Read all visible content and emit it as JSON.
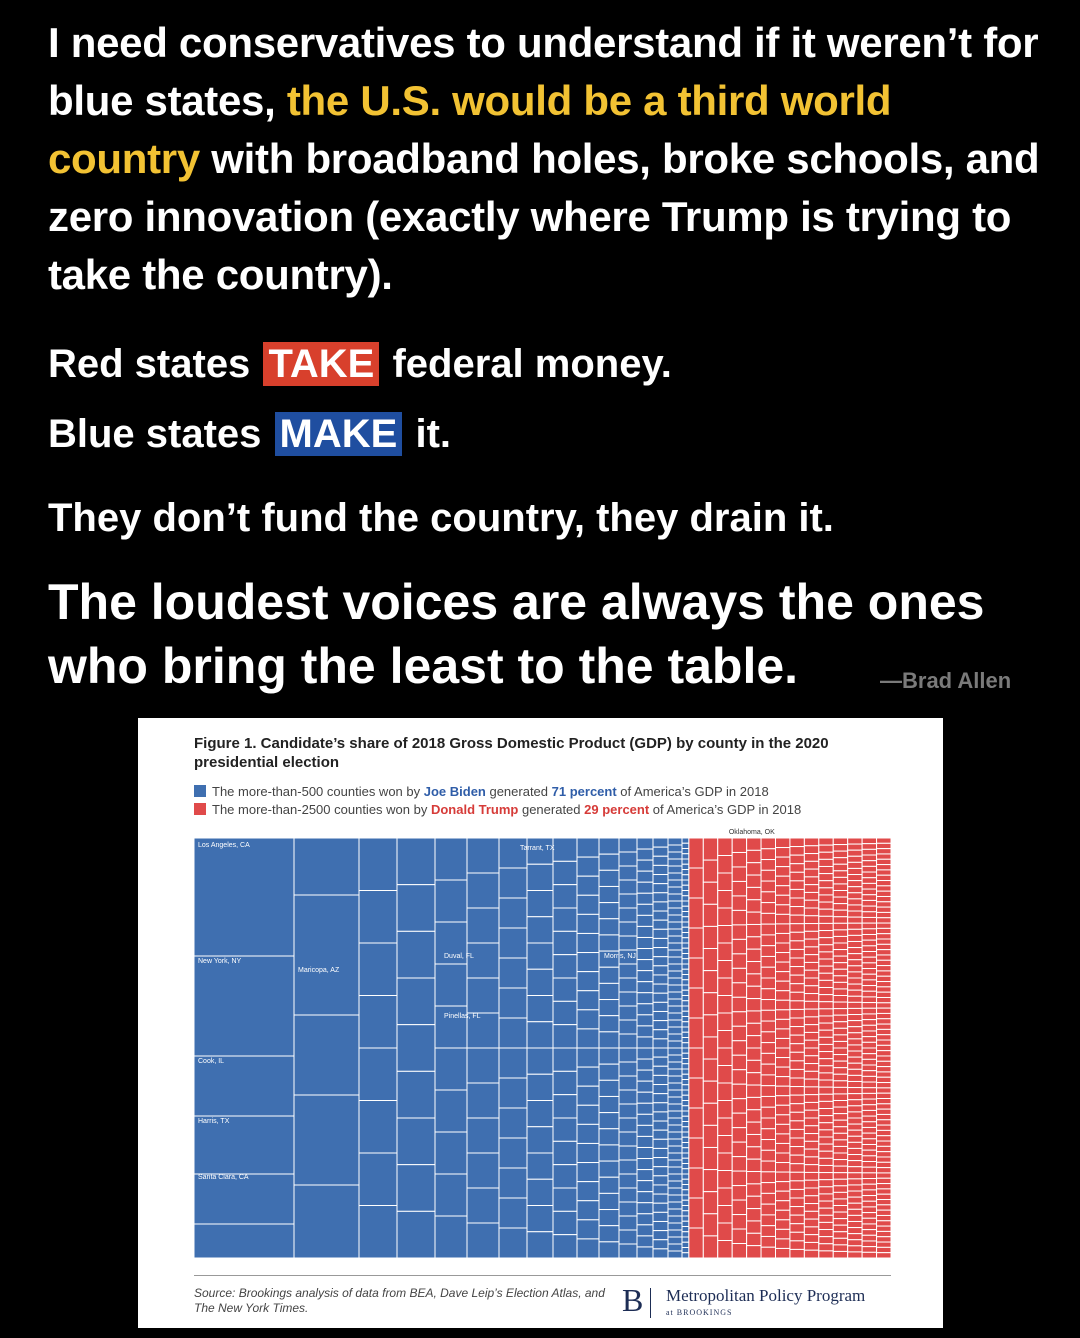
{
  "post": {
    "headline_parts": [
      {
        "text": "I need conservatives to understand if it weren’t for blue states, ",
        "style": "normal"
      },
      {
        "text": "the U.S. would be a third world country",
        "style": "yellow"
      },
      {
        "text": " with broadband holes, broke schools, and zero innovation (exactly where Trump is trying to take the country).",
        "style": "normal"
      }
    ],
    "line_take": {
      "before": "Red states",
      "tag": "TAKE",
      "after": "federal money."
    },
    "line_make": {
      "before": "Blue states",
      "tag": "MAKE",
      "after": "it."
    },
    "line_drain": "They don’t fund the country, they drain it.",
    "big_quote": "The loudest voices are always the ones who bring the least to the table.",
    "author": "—Brad Allen",
    "colors": {
      "yellow": "#f2c233",
      "take_bg": "#d8402c",
      "make_bg": "#1f4ea0"
    }
  },
  "figure": {
    "title": "Figure 1. Candidate’s share of 2018 Gross Domestic Product (GDP) by county in the 2020 presidential election",
    "legend": [
      {
        "prefix": "The more-than-500 counties won by ",
        "name": "Joe Biden",
        "middle": " generated ",
        "pct": "71 percent",
        "suffix": " of America’s GDP in 2018",
        "color": "#3f6fb0"
      },
      {
        "prefix": "The more-than-2500 counties won by ",
        "name": "Donald Trump",
        "middle": " generated ",
        "pct": "29 percent",
        "suffix": " of America’s GDP in 2018",
        "color": "#e04a4a"
      }
    ],
    "source": "Source: Brookings analysis of data from BEA, Dave Leip’s Election Atlas, and The New York Times.",
    "logo": {
      "letter": "B",
      "program": "Metropolitan Policy Program",
      "org": "at BROOKINGS"
    }
  },
  "chart_data": {
    "type": "treemap",
    "title": "Figure 1. Candidate’s share of 2018 Gross Domestic Product (GDP) by county in the 2020 presidential election",
    "series": [
      {
        "name": "Joe Biden",
        "share_pct": 71,
        "counties": "more-than-500",
        "color": "#3f6fb0"
      },
      {
        "name": "Donald Trump",
        "share_pct": 29,
        "counties": "more-than-2500",
        "color": "#e04a4a"
      }
    ],
    "labeled_counties": {
      "biden": [
        "Los Angeles, CA",
        "New York, NY",
        "Cook, IL",
        "Harris, TX",
        "Santa Clara, CA",
        "Maricopa, AZ",
        "Tarrant, TX",
        "Duval, FL",
        "Pinellas, FL",
        "Morris, NJ"
      ],
      "trump": [
        "Oklahoma, OK"
      ]
    }
  }
}
